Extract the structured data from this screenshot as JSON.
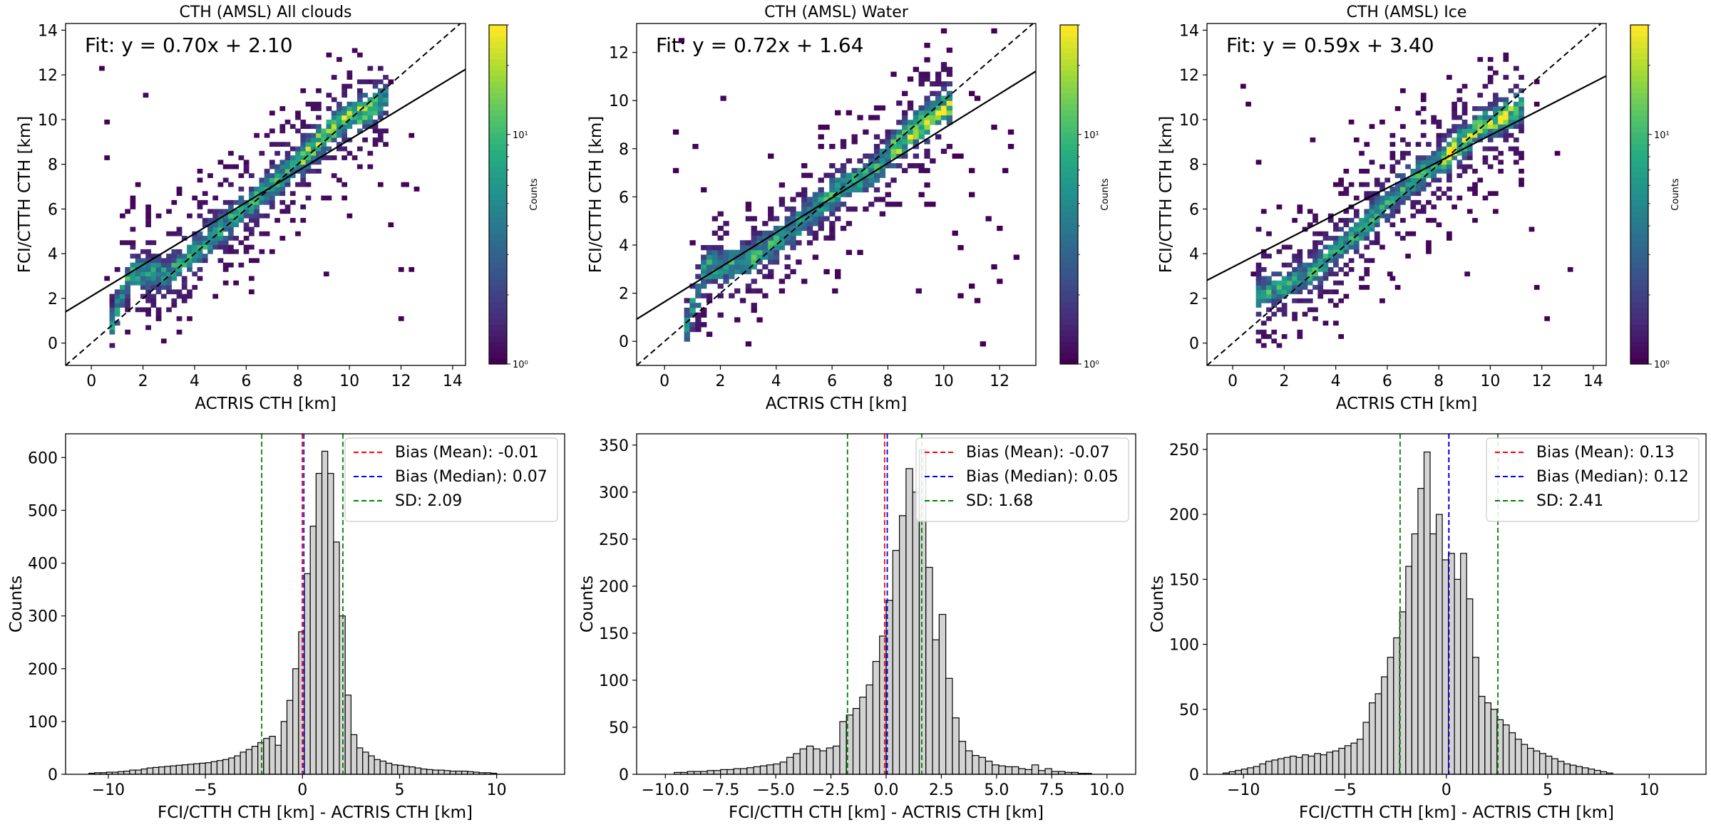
{
  "colors": {
    "colormap": [
      "#440154",
      "#472c7a",
      "#3b518b",
      "#2c718e",
      "#21908d",
      "#27ad81",
      "#5cc863",
      "#aadc32",
      "#fde725"
    ],
    "fit_line": "#000000",
    "identity_line": "#000000",
    "bar_fill": "#d3d3d3",
    "bar_edge": "#000000",
    "mean": "#ff0000",
    "median": "#0000ff",
    "sd": "#008000"
  },
  "chart_data": [
    {
      "type": "heatmap",
      "title": "CTH (AMSL) All clouds",
      "xlabel": "ACTRIS CTH [km]",
      "ylabel": "FCI/CTTH CTH [km]",
      "xlim": [
        -1,
        14.5
      ],
      "ylim": [
        -1,
        14.3
      ],
      "xticks": [
        0,
        2,
        4,
        6,
        8,
        10,
        12,
        14
      ],
      "yticks": [
        0,
        2,
        4,
        6,
        8,
        10,
        12,
        14
      ],
      "fit_text": "Fit: y = 0.70x + 2.10",
      "fit": {
        "slope": 0.7,
        "intercept": 2.1
      },
      "colorbar": {
        "label": "Counts",
        "scale": "log",
        "tick_labels": [
          "10⁰",
          "10¹"
        ],
        "tick_values": [
          1,
          10
        ],
        "max": 30
      },
      "density": {
        "along": [
          [
            0.7,
            0.5
          ],
          [
            1.5,
            3
          ],
          [
            3,
            3
          ],
          [
            4.5,
            4.5
          ],
          [
            6,
            6
          ],
          [
            7.5,
            7.5
          ],
          [
            8.5,
            8.5
          ],
          [
            9.5,
            9.7
          ],
          [
            10.5,
            10.2
          ],
          [
            11.5,
            11
          ]
        ],
        "spread": 2.3,
        "cloud": [
          [
            2.5,
            1
          ],
          [
            12,
            7
          ],
          [
            9,
            3
          ],
          [
            2,
            11
          ]
        ]
      }
    },
    {
      "type": "heatmap",
      "title": "CTH (AMSL) Water",
      "xlabel": "ACTRIS CTH [km]",
      "ylabel": "FCI/CTTH CTH [km]",
      "xlim": [
        -1,
        13.3
      ],
      "ylim": [
        -1,
        13.2
      ],
      "xticks": [
        0,
        2,
        4,
        6,
        8,
        10,
        12
      ],
      "yticks": [
        0,
        2,
        4,
        6,
        8,
        10,
        12
      ],
      "fit_text": "Fit: y = 0.72x + 1.64",
      "fit": {
        "slope": 0.72,
        "intercept": 1.64
      },
      "colorbar": {
        "label": "Counts",
        "scale": "log",
        "tick_labels": [
          "10⁰",
          "10¹"
        ],
        "tick_values": [
          1,
          10
        ],
        "max": 30
      },
      "density": {
        "along": [
          [
            0.7,
            0.3
          ],
          [
            1.5,
            3
          ],
          [
            3,
            3.2
          ],
          [
            4.5,
            4.5
          ],
          [
            6,
            6
          ],
          [
            7.5,
            7
          ],
          [
            8.5,
            8.2
          ],
          [
            9.5,
            9.2
          ],
          [
            10.3,
            9.8
          ]
        ],
        "spread": 2.0,
        "cloud": [
          [
            2,
            10
          ],
          [
            6,
            2
          ],
          [
            9,
            2
          ],
          [
            1,
            8
          ]
        ]
      }
    },
    {
      "type": "heatmap",
      "title": "CTH (AMSL) Ice",
      "xlabel": "ACTRIS CTH [km]",
      "ylabel": "FCI/CTTH CTH [km]",
      "xlim": [
        -1,
        14.5
      ],
      "ylim": [
        -1,
        14.3
      ],
      "xticks": [
        0,
        2,
        4,
        6,
        8,
        10,
        12,
        14
      ],
      "yticks": [
        0,
        2,
        4,
        6,
        8,
        10,
        12,
        14
      ],
      "fit_text": "Fit: y = 0.59x + 3.40",
      "fit": {
        "slope": 0.59,
        "intercept": 3.4
      },
      "colorbar": {
        "label": "Counts",
        "scale": "log",
        "tick_labels": [
          "10⁰",
          "10¹"
        ],
        "tick_values": [
          1,
          10
        ],
        "max": 30
      },
      "density": {
        "along": [
          [
            0.8,
            0.5
          ],
          [
            1,
            2
          ],
          [
            3,
            3
          ],
          [
            5,
            5
          ],
          [
            6.5,
            6.8
          ],
          [
            8,
            8
          ],
          [
            9.5,
            9.5
          ],
          [
            10.5,
            10
          ],
          [
            11.3,
            10.5
          ]
        ],
        "spread": 2.4,
        "cloud": [
          [
            3,
            9
          ],
          [
            6,
            3
          ],
          [
            9,
            3
          ],
          [
            13,
            3.2
          ]
        ]
      }
    },
    {
      "type": "bar",
      "title": "",
      "xlabel": "FCI/CTTH CTH [km] - ACTRIS CTH [km]",
      "ylabel": "Counts",
      "xlim": [
        -12.2,
        13.5
      ],
      "ylim": [
        0,
        645
      ],
      "xticks": [
        -10,
        -5,
        0,
        5,
        10
      ],
      "xtick_labels": [
        "−10",
        "−5",
        "0",
        "5",
        "10"
      ],
      "yticks": [
        0,
        100,
        200,
        300,
        400,
        500,
        600
      ],
      "bin_start": -11.0,
      "bin_width": 0.3,
      "values": [
        2,
        3,
        3,
        4,
        4,
        5,
        6,
        8,
        8,
        10,
        12,
        13,
        14,
        15,
        16,
        17,
        18,
        19,
        20,
        21,
        22,
        24,
        26,
        28,
        31,
        35,
        42,
        47,
        53,
        60,
        68,
        72,
        55,
        100,
        140,
        200,
        270,
        380,
        470,
        570,
        612,
        570,
        440,
        300,
        150,
        75,
        50,
        42,
        35,
        28,
        25,
        21,
        18,
        17,
        15,
        14,
        12,
        10,
        9,
        8,
        8,
        7,
        6,
        6,
        6,
        5,
        4,
        3,
        3,
        2
      ],
      "mean": -0.01,
      "median": 0.07,
      "sd": 2.09,
      "legend": [
        "Bias (Mean): -0.01",
        "Bias (Median): 0.07",
        "SD: 2.09"
      ]
    },
    {
      "type": "bar",
      "title": "",
      "xlabel": "FCI/CTTH CTH [km] - ACTRIS CTH [km]",
      "ylabel": "Counts",
      "xlim": [
        -11.3,
        11.3
      ],
      "ylim": [
        0,
        362
      ],
      "xticks": [
        -10,
        -7.5,
        -5,
        -2.5,
        0,
        2.5,
        5,
        7.5,
        10
      ],
      "xtick_labels": [
        "−10.0",
        "−7.5",
        "−5.0",
        "−2.5",
        "0.0",
        "2.5",
        "5.0",
        "7.5",
        "10.0"
      ],
      "yticks": [
        0,
        50,
        100,
        150,
        200,
        250,
        300,
        350
      ],
      "bin_start": -9.6,
      "bin_width": 0.3,
      "values": [
        2,
        2,
        3,
        3,
        3,
        4,
        4,
        5,
        5,
        6,
        6,
        7,
        8,
        9,
        10,
        11,
        13,
        18,
        22,
        27,
        30,
        27,
        25,
        28,
        30,
        56,
        63,
        70,
        82,
        95,
        120,
        147,
        185,
        238,
        275,
        325,
        300,
        345,
        220,
        143,
        170,
        102,
        60,
        35,
        25,
        20,
        18,
        14,
        10,
        9,
        8,
        8,
        6,
        5,
        10,
        4,
        6,
        3,
        3,
        2,
        2,
        1,
        1,
        0,
        0,
        0,
        0,
        0
      ],
      "mean": -0.07,
      "median": 0.05,
      "sd": 1.68,
      "legend": [
        "Bias (Mean): -0.07",
        "Bias (Median): 0.05",
        "SD: 1.68"
      ]
    },
    {
      "type": "bar",
      "title": "",
      "xlabel": "FCI/CTTH CTH [km] - ACTRIS CTH [km]",
      "ylabel": "Counts",
      "xlim": [
        -11.8,
        12.8
      ],
      "ylim": [
        0,
        262
      ],
      "xticks": [
        -10,
        -5,
        0,
        5,
        10
      ],
      "xtick_labels": [
        "−10",
        "−5",
        "0",
        "5",
        "10"
      ],
      "yticks": [
        0,
        50,
        100,
        150,
        200,
        250
      ],
      "bin_start": -11.0,
      "bin_width": 0.3,
      "values": [
        1,
        2,
        3,
        4,
        5,
        6,
        8,
        10,
        11,
        12,
        13,
        14,
        13,
        15,
        14,
        16,
        15,
        17,
        18,
        20,
        22,
        24,
        27,
        40,
        55,
        62,
        75,
        90,
        105,
        125,
        160,
        185,
        220,
        248,
        185,
        200,
        165,
        170,
        150,
        170,
        135,
        90,
        60,
        55,
        50,
        42,
        38,
        32,
        27,
        23,
        20,
        18,
        16,
        14,
        12,
        10,
        8,
        7,
        6,
        5,
        4,
        3,
        2,
        1
      ],
      "mean": 0.13,
      "median": 0.12,
      "sd": 2.41,
      "legend": [
        "Bias (Mean): 0.13",
        "Bias (Median): 0.12",
        "SD: 2.41"
      ]
    }
  ]
}
